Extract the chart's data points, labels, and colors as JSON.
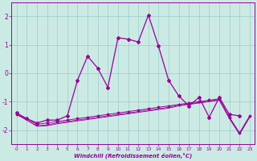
{
  "xlabel": "Windchill (Refroidissement éolien,°C)",
  "xlim": [
    0,
    23
  ],
  "ylim": [
    -2.5,
    2.5
  ],
  "yticks": [
    -2,
    -1,
    0,
    1,
    2
  ],
  "xticks": [
    0,
    1,
    2,
    3,
    4,
    5,
    6,
    7,
    8,
    9,
    10,
    11,
    12,
    13,
    14,
    15,
    16,
    17,
    18,
    19,
    20,
    21,
    22,
    23
  ],
  "bg_color": "#cceae4",
  "grid_color": "#99cccc",
  "line_color": "#990099",
  "line1_x": [
    0,
    1,
    2,
    3,
    4,
    5,
    6,
    7,
    8,
    9,
    10,
    11,
    12,
    13,
    14,
    15,
    16,
    17,
    18,
    19,
    20,
    21,
    22,
    23
  ],
  "line1_y": [
    -1.4,
    -1.6,
    -1.75,
    -1.65,
    -1.65,
    -1.5,
    -0.25,
    0.6,
    0.18,
    -0.5,
    1.25,
    1.2,
    1.1,
    2.05,
    0.95,
    -0.25,
    -0.8,
    -1.15,
    -0.85,
    -1.55,
    -0.85,
    -1.45,
    -1.5,
    null
  ],
  "line2_x": [
    0,
    1,
    2,
    3,
    4,
    5,
    6,
    7,
    8,
    9,
    10,
    11,
    12,
    13,
    14,
    15,
    16,
    17,
    18,
    19,
    20,
    21,
    22,
    23
  ],
  "line2_y": [
    -1.45,
    -1.6,
    -1.8,
    -1.75,
    -1.7,
    -1.65,
    -1.6,
    -1.55,
    -1.5,
    -1.45,
    -1.4,
    -1.35,
    -1.3,
    -1.25,
    -1.2,
    -1.15,
    -1.1,
    -1.05,
    -1.0,
    -0.95,
    -0.9,
    -1.55,
    -2.1,
    -1.5
  ],
  "line3_x": [
    0,
    1,
    2,
    3,
    4,
    5,
    6,
    7,
    8,
    9,
    10,
    11,
    12,
    13,
    14,
    15,
    16,
    17,
    18,
    19,
    20,
    21,
    22,
    23
  ],
  "line3_y": [
    -1.45,
    -1.65,
    -1.85,
    -1.82,
    -1.75,
    -1.7,
    -1.65,
    -1.6,
    -1.55,
    -1.5,
    -1.45,
    -1.4,
    -1.35,
    -1.3,
    -1.25,
    -1.2,
    -1.12,
    -1.08,
    -1.03,
    -0.98,
    -0.93,
    -1.58,
    -2.13,
    -1.53
  ],
  "line4_x": [
    0,
    1,
    2,
    3,
    4,
    5,
    6,
    7,
    8,
    9,
    10,
    11,
    12,
    13,
    14,
    15,
    16,
    17,
    18,
    19,
    20,
    21,
    22,
    23
  ],
  "line4_y": [
    -1.45,
    -1.65,
    -1.87,
    -1.85,
    -1.78,
    -1.73,
    -1.68,
    -1.63,
    -1.58,
    -1.53,
    -1.48,
    -1.43,
    -1.38,
    -1.33,
    -1.28,
    -1.23,
    -1.15,
    -1.1,
    -1.05,
    -1.0,
    -0.95,
    -1.6,
    -2.15,
    -1.55
  ]
}
